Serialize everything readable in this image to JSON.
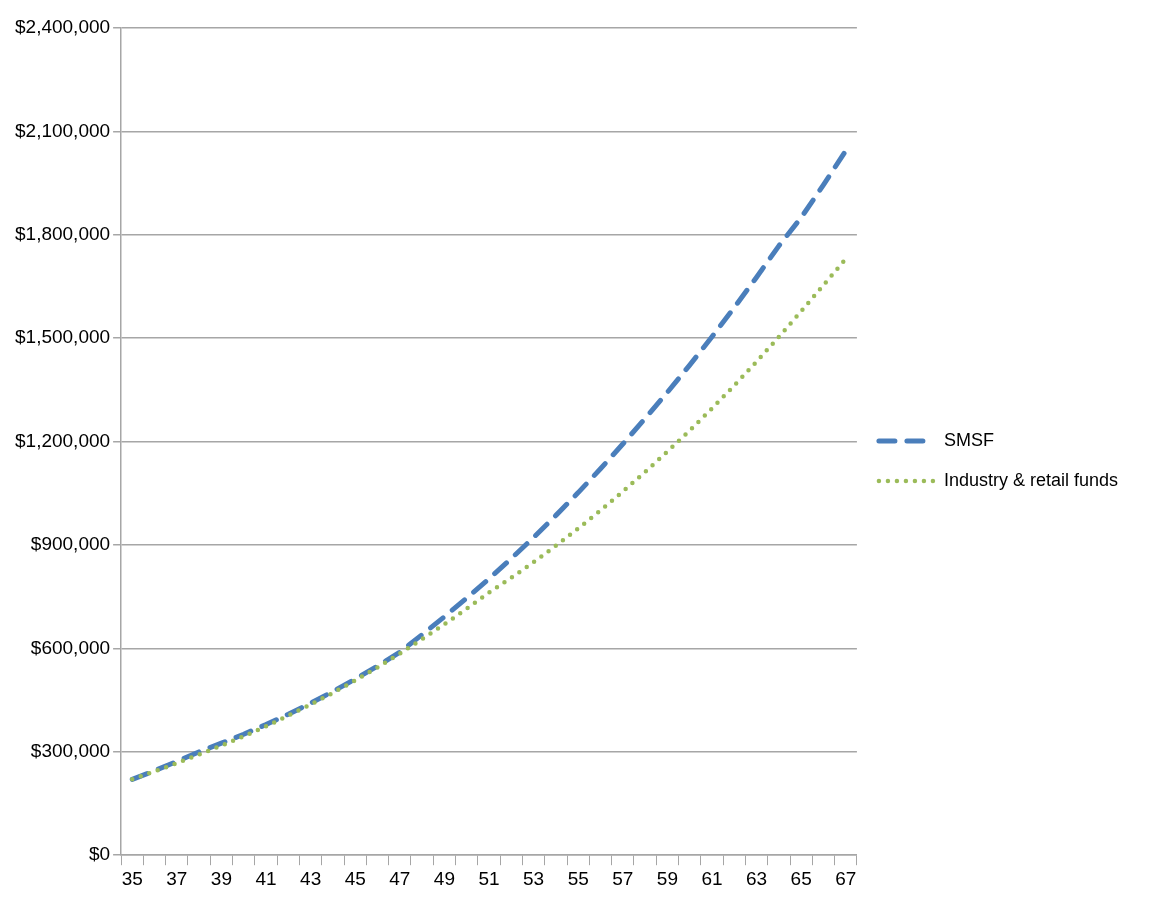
{
  "chart_data": {
    "type": "line",
    "categories": [
      "35",
      null,
      "37",
      null,
      "39",
      null,
      "41",
      null,
      "43",
      null,
      "45",
      null,
      "47",
      null,
      "49",
      null,
      "51",
      null,
      "53",
      null,
      "55",
      null,
      "57",
      null,
      "59",
      null,
      "61",
      null,
      "63",
      null,
      "65",
      null,
      "67"
    ],
    "series": [
      {
        "name": "SMSF",
        "color": "#4a7ebb",
        "line_style": "dashed",
        "values": [
          220000,
          245000,
          272000,
          300000,
          325000,
          351000,
          379000,
          409000,
          441000,
          475000,
          511000,
          549000,
          589000,
          640000,
          692000,
          746000,
          802000,
          861000,
          922000,
          986000,
          1052000,
          1121000,
          1193000,
          1267000,
          1343000,
          1422000,
          1504000,
          1589000,
          1677000,
          1768000,
          1850000,
          1945000,
          2044000
        ]
      },
      {
        "name": "Industry & retail funds",
        "color": "#9bbb59",
        "line_style": "dotted",
        "values": [
          220000,
          243000,
          267000,
          292000,
          318000,
          345000,
          374000,
          405000,
          437000,
          471000,
          507000,
          545000,
          585000,
          627000,
          670000,
          715000,
          762000,
          805000,
          850000,
          898000,
          948000,
          1000000,
          1055000,
          1112000,
          1171000,
          1232000,
          1296000,
          1363000,
          1432000,
          1504000,
          1578000,
          1654000,
          1730000
        ]
      }
    ],
    "ylim": [
      0,
      2400000
    ],
    "yticks": [
      {
        "value": 0,
        "label": "$0"
      },
      {
        "value": 300000,
        "label": "$300,000"
      },
      {
        "value": 600000,
        "label": "$600,000"
      },
      {
        "value": 900000,
        "label": "$900,000"
      },
      {
        "value": 1200000,
        "label": "$1,200,000"
      },
      {
        "value": 1500000,
        "label": "$1,500,000"
      },
      {
        "value": 1800000,
        "label": "$1,800,000"
      },
      {
        "value": 2100000,
        "label": "$2,100,000"
      },
      {
        "value": 2400000,
        "label": "$2,400,000"
      }
    ],
    "grid": "y",
    "legend": "right",
    "marker": "none"
  }
}
